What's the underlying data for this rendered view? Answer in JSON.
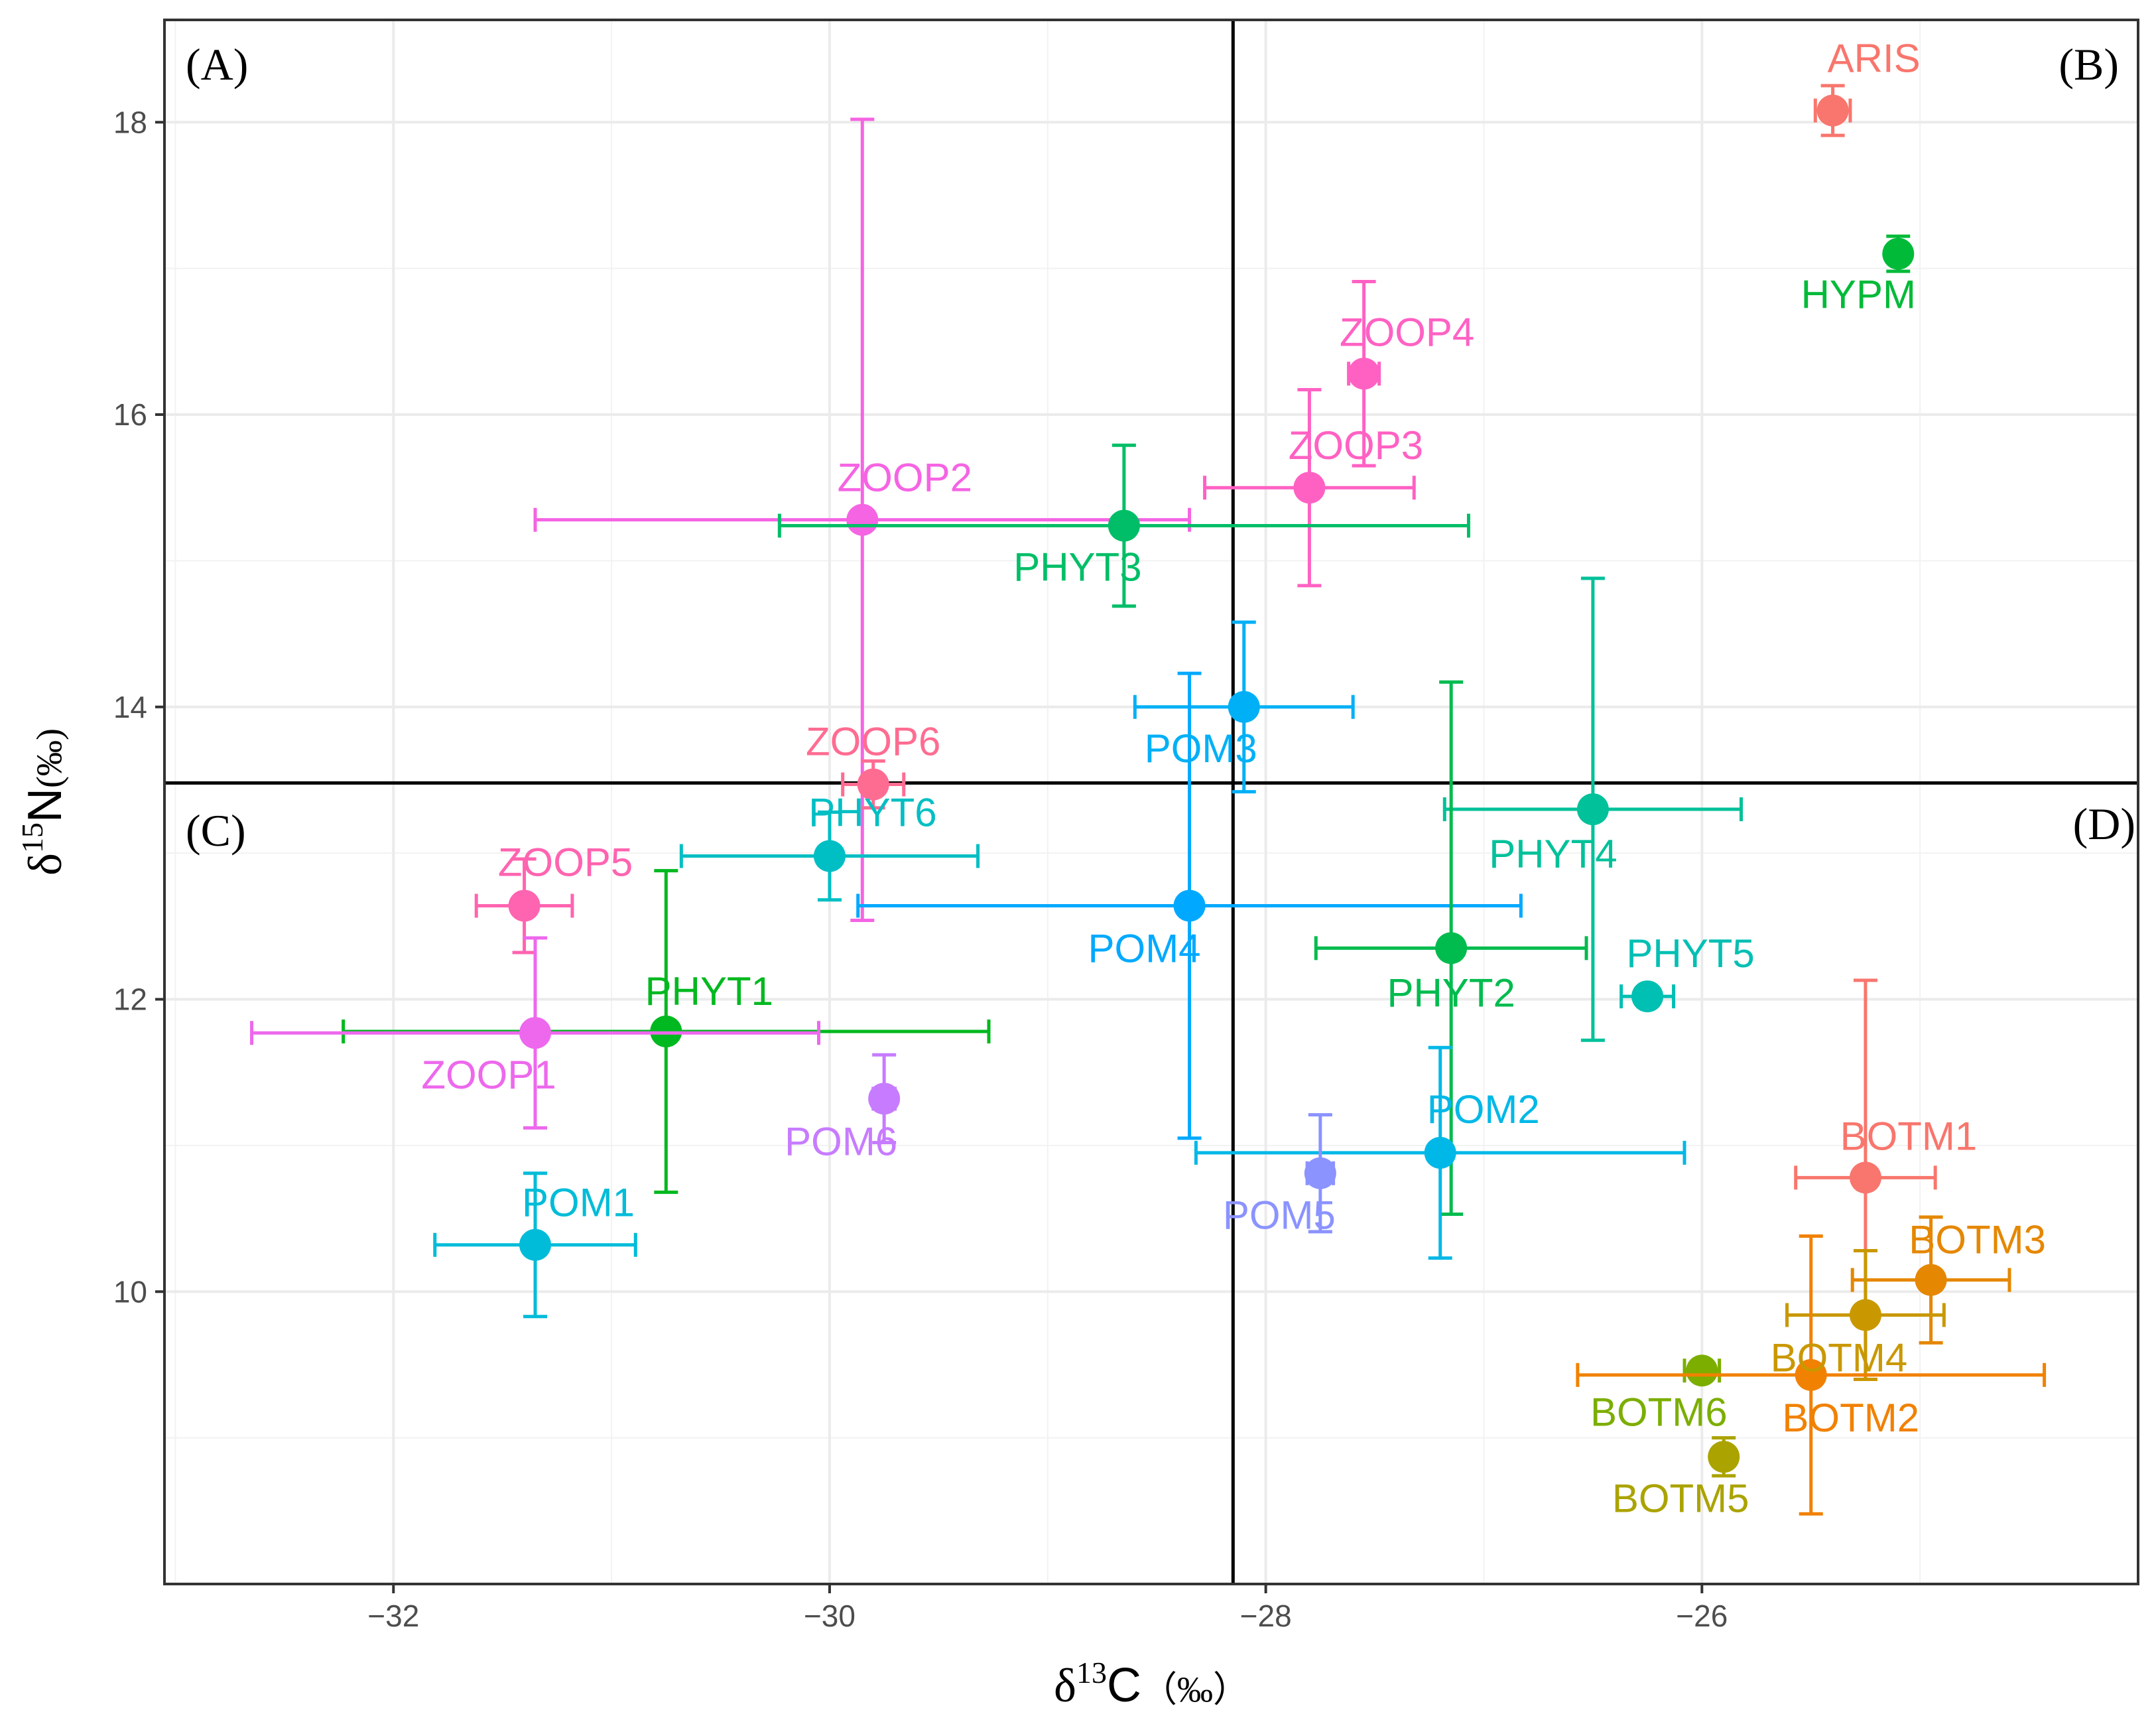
{
  "chart_data": {
    "type": "scatter",
    "title": "",
    "xlabel": {
      "prefix": "δ",
      "sup": "13",
      "main": "C",
      "unit": "（‰）"
    },
    "ylabel": {
      "prefix": "δ",
      "sup": "15",
      "main": "N",
      "unit": "(‰)"
    },
    "xlim": [
      -33.05,
      -24.0
    ],
    "ylim": [
      8.0,
      18.7
    ],
    "x_ticks": [
      -32,
      -30,
      -28,
      -26
    ],
    "x_tick_labels": [
      "−32",
      "−30",
      "−28",
      "−26"
    ],
    "y_ticks": [
      10,
      12,
      14,
      16,
      18
    ],
    "y_tick_labels": [
      "10",
      "12",
      "14",
      "16",
      "18"
    ],
    "grid": true,
    "reference_lines": {
      "vertical_x": -28.15,
      "horizontal_y": 13.48
    },
    "quadrant_labels": [
      "(A)",
      "(B)",
      "(C)",
      "(D)"
    ],
    "points": [
      {
        "name": "ARIS",
        "x": -25.4,
        "y": 18.08,
        "x_err": 0.08,
        "y_err": 0.17,
        "color": "#F8766D"
      },
      {
        "name": "HYPM",
        "x": -25.1,
        "y": 17.1,
        "x_err": 0.04,
        "y_err": 0.12,
        "color": "#00BA38"
      },
      {
        "name": "ZOOP4",
        "x": -27.55,
        "y": 16.28,
        "x_err": 0.07,
        "y_err": 0.63,
        "color": "#FF61C3"
      },
      {
        "name": "ZOOP3",
        "x": -27.8,
        "y": 15.5,
        "x_err": 0.48,
        "y_err": 0.67,
        "color": "#FF61C3"
      },
      {
        "name": "ZOOP2",
        "x": -29.85,
        "y": 15.28,
        "x_err": 1.5,
        "y_err": 2.74,
        "color": "#F564E3"
      },
      {
        "name": "PHYT3",
        "x": -28.65,
        "y": 15.24,
        "x_err": 1.58,
        "y_err": 0.55,
        "color": "#00BE67"
      },
      {
        "name": "POM3",
        "x": -28.1,
        "y": 14.0,
        "x_err": 0.5,
        "y_err": 0.58,
        "color": "#00B0F6"
      },
      {
        "name": "ZOOP6",
        "x": -29.8,
        "y": 13.47,
        "x_err": 0.14,
        "y_err": 0.16,
        "color": "#FF6C91"
      },
      {
        "name": "PHYT4",
        "x": -26.5,
        "y": 13.3,
        "x_err": 0.68,
        "y_err": 1.58,
        "color": "#00C19A"
      },
      {
        "name": "PHYT6",
        "x": -30.0,
        "y": 12.98,
        "x_err": 0.68,
        "y_err": 0.3,
        "color": "#00BFC4"
      },
      {
        "name": "ZOOP5",
        "x": -31.4,
        "y": 12.64,
        "x_err": 0.22,
        "y_err": 0.32,
        "color": "#FF64B0"
      },
      {
        "name": "POM4",
        "x": -28.35,
        "y": 12.64,
        "x_err": 1.52,
        "y_err": 1.59,
        "color": "#00A9FF"
      },
      {
        "name": "PHYT2",
        "x": -27.15,
        "y": 12.35,
        "x_err": 0.62,
        "y_err": 1.82,
        "color": "#00BB4E"
      },
      {
        "name": "PHYT5",
        "x": -26.25,
        "y": 12.02,
        "x_err": 0.12,
        "y_err": 0.04,
        "color": "#00BFB3"
      },
      {
        "name": "PHYT1",
        "x": -30.75,
        "y": 11.78,
        "x_err": 1.48,
        "y_err": 1.1,
        "color": "#00B81F"
      },
      {
        "name": "ZOOP1",
        "x": -31.35,
        "y": 11.77,
        "x_err": 1.3,
        "y_err": 0.65,
        "color": "#ED68ED"
      },
      {
        "name": "POM6",
        "x": -29.75,
        "y": 11.32,
        "x_err": 0.05,
        "y_err": 0.3,
        "color": "#C77CFF"
      },
      {
        "name": "POM2",
        "x": -27.2,
        "y": 10.95,
        "x_err": 1.12,
        "y_err": 0.72,
        "color": "#00B8E7"
      },
      {
        "name": "POM5",
        "x": -27.75,
        "y": 10.81,
        "x_err": 0.06,
        "y_err": 0.4,
        "color": "#8B93FF"
      },
      {
        "name": "BOTM1",
        "x": -25.25,
        "y": 10.78,
        "x_err": 0.32,
        "y_err": 1.35,
        "color": "#F8766D"
      },
      {
        "name": "POM1",
        "x": -31.35,
        "y": 10.32,
        "x_err": 0.46,
        "y_err": 0.49,
        "color": "#00BCD8"
      },
      {
        "name": "BOTM3",
        "x": -24.95,
        "y": 10.08,
        "x_err": 0.36,
        "y_err": 0.43,
        "color": "#E58700"
      },
      {
        "name": "BOTM4",
        "x": -25.25,
        "y": 9.84,
        "x_err": 0.36,
        "y_err": 0.44,
        "color": "#C99800"
      },
      {
        "name": "BOTM6",
        "x": -26.0,
        "y": 9.46,
        "x_err": 0.08,
        "y_err": 0.05,
        "color": "#7CAE00"
      },
      {
        "name": "BOTM2",
        "x": -25.5,
        "y": 9.43,
        "x_err": 1.07,
        "y_err": 0.95,
        "color": "#F18100"
      },
      {
        "name": "BOTM5",
        "x": -25.9,
        "y": 8.87,
        "x_err": 0.04,
        "y_err": 0.13,
        "color": "#ABA300"
      }
    ]
  }
}
